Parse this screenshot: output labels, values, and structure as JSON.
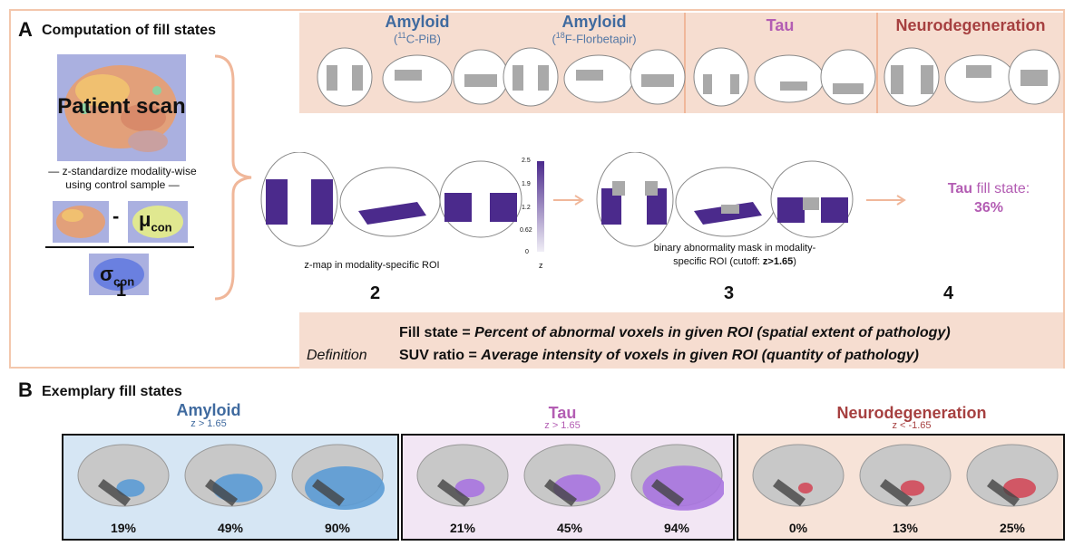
{
  "panel_a": {
    "letter": "A",
    "title": "Computation of fill states",
    "scan_label": "Patient scan",
    "standardize_line1": "— z-standardize modality-wise",
    "standardize_line2": "using control sample —",
    "minus": "-",
    "mu": "μ",
    "mu_sub": "con",
    "sigma": "σ",
    "sigma_sub": "con",
    "roi_headers": [
      {
        "name": "Amyloid",
        "tracer_sup": "11",
        "tracer_rest": "C-PiB"
      },
      {
        "name": "Amyloid",
        "tracer_sup": "18",
        "tracer_rest": "F-Florbetapir"
      },
      {
        "name": "Tau"
      },
      {
        "name": "Neurodegeneration"
      }
    ],
    "zmap_caption": "z-map in modality-specific ROI",
    "colorbar_ticks": [
      "2.5",
      "1.9",
      "1.2",
      "0.62",
      "0"
    ],
    "colorbar_label": "z",
    "mask_caption_line1": "binary abnormality mask in modality-",
    "mask_caption_line2": "specific ROI (cutoff: ",
    "mask_cutoff": "z>1.65",
    "mask_caption_end": ")",
    "fill_state_name": "Tau",
    "fill_state_text": " fill state:",
    "fill_state_value": "36%",
    "steps": [
      "1",
      "2",
      "3",
      "4"
    ],
    "definition_label": "Definition",
    "def1_term": "Fill state = ",
    "def1_text": "Percent of abnormal voxels in given ROI (spatial extent of pathology)",
    "def2_term": "SUV ratio = ",
    "def2_text": "Average intensity of voxels in given ROI (quantity of pathology)"
  },
  "panel_b": {
    "letter": "B",
    "title": "Exemplary fill states",
    "groups": [
      {
        "name": "Amyloid",
        "cutoff": "z > 1.65",
        "values": [
          "19%",
          "49%",
          "90%"
        ],
        "bg": "#d6e6f4",
        "fill": "#5b9bd5"
      },
      {
        "name": "Tau",
        "cutoff": "z > 1.65",
        "values": [
          "21%",
          "45%",
          "94%"
        ],
        "bg": "#f2e6f4",
        "fill": "#a874e0"
      },
      {
        "name": "Neurodegeneration",
        "cutoff": "z < -1.65",
        "values": [
          "0%",
          "13%",
          "25%"
        ],
        "bg": "#f7e3d8",
        "fill": "#d24a5a"
      }
    ]
  },
  "colors": {
    "amyloid": "#3f6a9f",
    "tau": "#b35db3",
    "neuro": "#a64040",
    "roi_band": "#f6ddd0",
    "frame": "#f3c7ad",
    "zmap": "#4b2a8c"
  }
}
